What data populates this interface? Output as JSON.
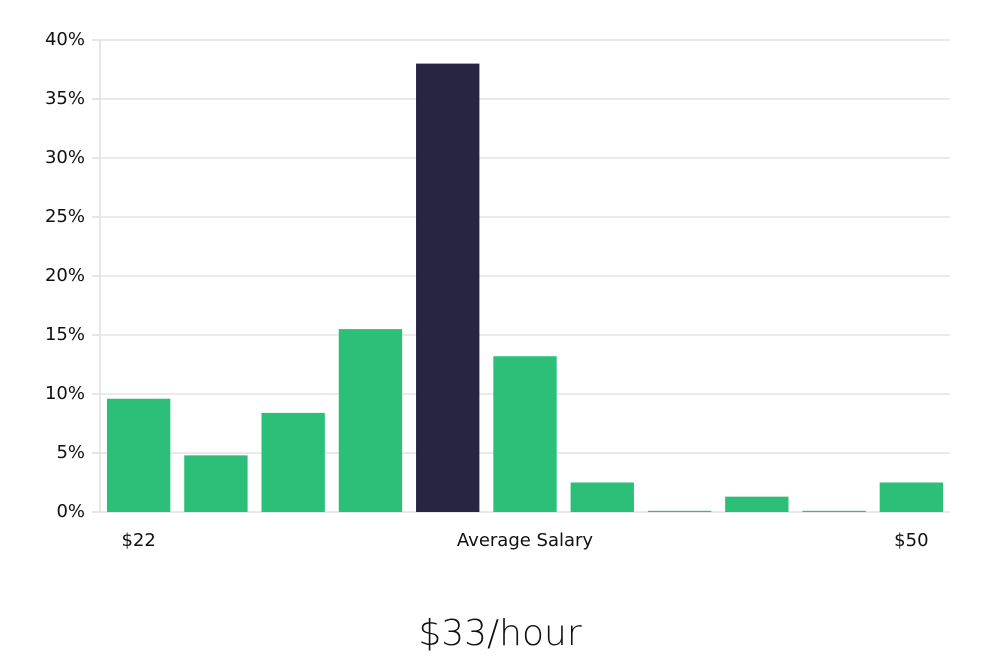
{
  "chart_data": {
    "type": "bar",
    "categories": [
      "$22",
      null,
      null,
      null,
      null,
      "Average Salary",
      null,
      null,
      null,
      null,
      "$50"
    ],
    "values": [
      9.6,
      4.8,
      8.4,
      15.5,
      38,
      13.2,
      2.5,
      0.1,
      1.3,
      0.1,
      2.5
    ],
    "colors": [
      "#2bbf78",
      "#2bbf78",
      "#2bbf78",
      "#2bbf78",
      "#272541",
      "#2bbf78",
      "#2bbf78",
      "#2bbf78",
      "#2bbf78",
      "#2bbf78",
      "#2bbf78"
    ],
    "ylim": [
      0,
      40
    ],
    "yticks": [
      {
        "value": 0,
        "label": "0%"
      },
      {
        "value": 5,
        "label": "5%"
      },
      {
        "value": 10,
        "label": "10%"
      },
      {
        "value": 15,
        "label": "15%"
      },
      {
        "value": 20,
        "label": "20%"
      },
      {
        "value": 25,
        "label": "25%"
      },
      {
        "value": 30,
        "label": "30%"
      },
      {
        "value": 35,
        "label": "35%"
      },
      {
        "value": 40,
        "label": "40%"
      }
    ],
    "grid": true,
    "footer": "$33/hour"
  }
}
